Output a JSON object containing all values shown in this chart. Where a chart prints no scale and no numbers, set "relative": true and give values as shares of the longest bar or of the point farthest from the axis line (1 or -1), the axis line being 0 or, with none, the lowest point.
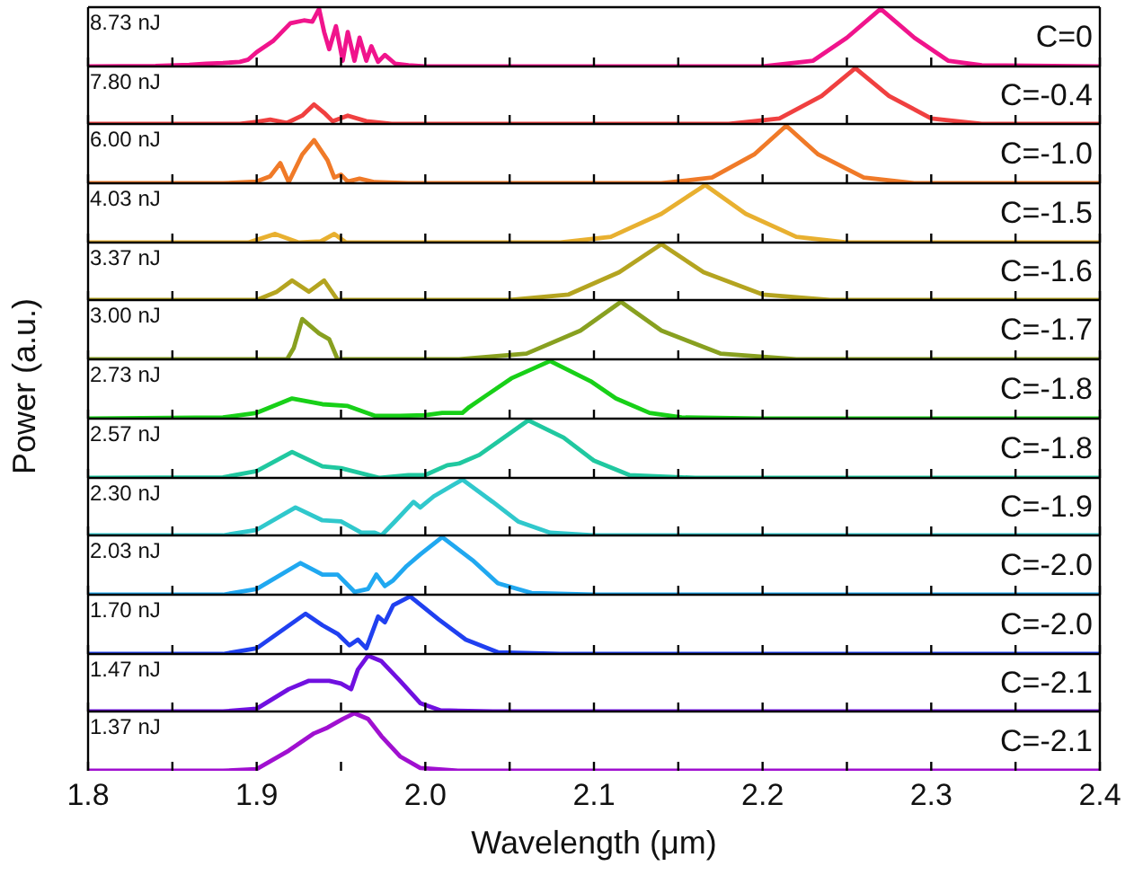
{
  "chart_data": [
    {
      "type": "line",
      "relative": true,
      "color": "#f0148c",
      "xlim": [
        1.8,
        2.4
      ],
      "xticks": [
        1.8,
        {
          "value": 1.85,
          "label": null
        },
        1.9,
        {
          "value": 1.95,
          "label": null
        },
        2.0,
        {
          "value": 2.05,
          "label": null
        },
        2.1,
        {
          "value": 2.15,
          "label": null
        },
        2.2,
        {
          "value": 2.25,
          "label": null
        },
        2.3,
        {
          "value": 2.35,
          "label": null
        },
        2.4
      ],
      "tick_labels": false,
      "annotations": [
        "8.73 nJ",
        "C=0"
      ],
      "x": [
        1.8,
        1.84,
        1.86,
        1.87,
        1.88,
        1.89,
        1.895,
        1.9,
        1.91,
        1.92,
        1.928,
        1.933,
        1.937,
        1.94,
        1.943,
        1.947,
        1.951,
        1.954,
        1.958,
        1.961,
        1.965,
        1.968,
        1.972,
        1.976,
        1.982,
        1.99,
        2.0,
        2.2,
        2.23,
        2.25,
        2.27,
        2.29,
        2.31,
        2.33,
        2.4
      ],
      "values": [
        0,
        0.01,
        0.03,
        0.05,
        0.06,
        0.08,
        0.12,
        0.25,
        0.45,
        0.75,
        0.8,
        0.78,
        1.0,
        0.6,
        0.3,
        0.7,
        0.1,
        0.6,
        0.1,
        0.5,
        0.1,
        0.35,
        0.08,
        0.2,
        0.05,
        0.02,
        0,
        0,
        0.1,
        0.5,
        1.0,
        0.5,
        0.1,
        0.02,
        0
      ]
    },
    {
      "type": "line",
      "relative": true,
      "color": "#f04040",
      "xlim": [
        1.8,
        2.4
      ],
      "xticks": [
        1.8,
        {
          "value": 1.85,
          "label": null
        },
        1.9,
        {
          "value": 1.95,
          "label": null
        },
        2.0,
        {
          "value": 2.05,
          "label": null
        },
        2.1,
        {
          "value": 2.15,
          "label": null
        },
        2.2,
        {
          "value": 2.25,
          "label": null
        },
        2.3,
        {
          "value": 2.35,
          "label": null
        },
        2.4
      ],
      "tick_labels": false,
      "annotations": [
        "7.80 nJ",
        "C=-0.4"
      ],
      "x": [
        1.8,
        1.89,
        1.9,
        1.908,
        1.918,
        1.927,
        1.934,
        1.94,
        1.945,
        1.954,
        1.965,
        1.98,
        2.18,
        2.21,
        2.235,
        2.255,
        2.275,
        2.3,
        2.33,
        2.4
      ],
      "values": [
        0,
        0,
        0.04,
        0.08,
        0.02,
        0.15,
        0.35,
        0.2,
        0.05,
        0.15,
        0.05,
        0,
        0,
        0.1,
        0.5,
        1.0,
        0.5,
        0.1,
        0,
        0
      ]
    },
    {
      "type": "line",
      "relative": true,
      "color": "#f07a28",
      "xlim": [
        1.8,
        2.4
      ],
      "xticks": [
        1.8,
        {
          "value": 1.85,
          "label": null
        },
        1.9,
        {
          "value": 1.95,
          "label": null
        },
        2.0,
        {
          "value": 2.05,
          "label": null
        },
        2.1,
        {
          "value": 2.15,
          "label": null
        },
        2.2,
        {
          "value": 2.25,
          "label": null
        },
        2.3,
        {
          "value": 2.35,
          "label": null
        },
        2.4
      ],
      "tick_labels": false,
      "annotations": [
        "6.00 nJ",
        "C=-1.0"
      ],
      "x": [
        1.8,
        1.88,
        1.9,
        1.908,
        1.914,
        1.919,
        1.927,
        1.934,
        1.942,
        1.946,
        1.95,
        1.954,
        1.961,
        1.97,
        1.99,
        2.14,
        2.17,
        2.195,
        2.214,
        2.233,
        2.26,
        2.29,
        2.4
      ],
      "values": [
        0,
        0,
        0.03,
        0.12,
        0.35,
        0.02,
        0.5,
        0.75,
        0.4,
        0.1,
        0.15,
        0.03,
        0.08,
        0.02,
        0,
        0,
        0.1,
        0.5,
        1.0,
        0.5,
        0.1,
        0,
        0
      ]
    },
    {
      "type": "line",
      "relative": true,
      "color": "#e8b030",
      "xlim": [
        1.8,
        2.4
      ],
      "xticks": [
        1.8,
        {
          "value": 1.85,
          "label": null
        },
        1.9,
        {
          "value": 1.95,
          "label": null
        },
        2.0,
        {
          "value": 2.05,
          "label": null
        },
        2.1,
        {
          "value": 2.15,
          "label": null
        },
        2.2,
        {
          "value": 2.25,
          "label": null
        },
        2.3,
        {
          "value": 2.35,
          "label": null
        },
        2.4
      ],
      "tick_labels": false,
      "annotations": [
        "4.03 nJ",
        "C=-1.5"
      ],
      "x": [
        1.8,
        1.895,
        1.911,
        1.925,
        1.938,
        1.946,
        1.953,
        2.08,
        2.11,
        2.14,
        2.166,
        2.19,
        2.22,
        2.25,
        2.4
      ],
      "values": [
        0,
        0,
        0.15,
        0,
        0.02,
        0.15,
        0,
        0,
        0.1,
        0.5,
        1.0,
        0.5,
        0.1,
        0,
        0
      ]
    },
    {
      "type": "line",
      "relative": true,
      "color": "#b4a420",
      "xlim": [
        1.8,
        2.4
      ],
      "xticks": [
        1.8,
        {
          "value": 1.85,
          "label": null
        },
        1.9,
        {
          "value": 1.95,
          "label": null
        },
        2.0,
        {
          "value": 2.05,
          "label": null
        },
        2.1,
        {
          "value": 2.15,
          "label": null
        },
        2.2,
        {
          "value": 2.25,
          "label": null
        },
        2.3,
        {
          "value": 2.35,
          "label": null
        },
        2.4
      ],
      "tick_labels": false,
      "annotations": [
        "3.37 nJ",
        "C=-1.6"
      ],
      "x": [
        1.8,
        1.9,
        1.912,
        1.921,
        1.931,
        1.94,
        1.948,
        2.05,
        2.085,
        2.115,
        2.14,
        2.165,
        2.2,
        2.24,
        2.4
      ],
      "values": [
        0,
        0,
        0.15,
        0.35,
        0.15,
        0.35,
        0,
        0,
        0.1,
        0.5,
        1.0,
        0.5,
        0.1,
        0,
        0
      ]
    },
    {
      "type": "line",
      "relative": true,
      "color": "#88a020",
      "xlim": [
        1.8,
        2.4
      ],
      "xticks": [
        1.8,
        {
          "value": 1.85,
          "label": null
        },
        1.9,
        {
          "value": 1.95,
          "label": null
        },
        2.0,
        {
          "value": 2.05,
          "label": null
        },
        2.1,
        {
          "value": 2.15,
          "label": null
        },
        2.2,
        {
          "value": 2.25,
          "label": null
        },
        2.3,
        {
          "value": 2.35,
          "label": null
        },
        2.4
      ],
      "tick_labels": false,
      "annotations": [
        "3.00 nJ",
        "C=-1.7"
      ],
      "x": [
        1.8,
        1.918,
        1.922,
        1.927,
        1.937,
        1.943,
        1.948,
        2.02,
        2.06,
        2.092,
        2.116,
        2.14,
        2.175,
        2.22,
        2.4
      ],
      "values": [
        0,
        0,
        0.2,
        0.7,
        0.45,
        0.35,
        0,
        0,
        0.1,
        0.5,
        1.0,
        0.5,
        0.1,
        0,
        0
      ]
    },
    {
      "type": "line",
      "relative": true,
      "color": "#18d018",
      "xlim": [
        1.8,
        2.4
      ],
      "xticks": [
        1.8,
        {
          "value": 1.85,
          "label": null
        },
        1.9,
        {
          "value": 1.95,
          "label": null
        },
        2.0,
        {
          "value": 2.05,
          "label": null
        },
        2.1,
        {
          "value": 2.15,
          "label": null
        },
        2.2,
        {
          "value": 2.25,
          "label": null
        },
        2.3,
        {
          "value": 2.35,
          "label": null
        },
        2.4
      ],
      "tick_labels": false,
      "ylabel": "Power (a.u.)",
      "annotations": [
        "2.73 nJ",
        "C=-1.8"
      ],
      "x": [
        1.8,
        1.88,
        1.9,
        1.921,
        1.939,
        1.954,
        1.97,
        1.985,
        2.0,
        2.01,
        2.022,
        2.026,
        2.036,
        2.051,
        2.074,
        2.098,
        2.113,
        2.133,
        2.152,
        2.2,
        2.4
      ],
      "values": [
        0,
        0.02,
        0.1,
        0.35,
        0.25,
        0.22,
        0.05,
        0.05,
        0.06,
        0.1,
        0.1,
        0.2,
        0.4,
        0.7,
        1.0,
        0.65,
        0.35,
        0.1,
        0.02,
        0,
        0
      ]
    },
    {
      "type": "line",
      "relative": true,
      "color": "#20c8a0",
      "xlim": [
        1.8,
        2.4
      ],
      "xticks": [
        1.8,
        {
          "value": 1.85,
          "label": null
        },
        1.9,
        {
          "value": 1.95,
          "label": null
        },
        2.0,
        {
          "value": 2.05,
          "label": null
        },
        2.1,
        {
          "value": 2.15,
          "label": null
        },
        2.2,
        {
          "value": 2.25,
          "label": null
        },
        2.3,
        {
          "value": 2.35,
          "label": null
        },
        2.4
      ],
      "tick_labels": false,
      "annotations": [
        "2.57 nJ",
        "C=-1.8"
      ],
      "x": [
        1.8,
        1.88,
        1.9,
        1.921,
        1.939,
        1.95,
        1.973,
        1.99,
        2.0,
        2.013,
        2.02,
        2.032,
        2.061,
        2.082,
        2.1,
        2.121,
        2.16,
        2.4
      ],
      "values": [
        0,
        0.01,
        0.12,
        0.45,
        0.2,
        0.17,
        0,
        0.05,
        0.05,
        0.22,
        0.25,
        0.4,
        1.0,
        0.7,
        0.3,
        0.05,
        0,
        0
      ]
    },
    {
      "type": "line",
      "relative": true,
      "color": "#30c8cc",
      "xlim": [
        1.8,
        2.4
      ],
      "xticks": [
        1.8,
        {
          "value": 1.85,
          "label": null
        },
        1.9,
        {
          "value": 1.95,
          "label": null
        },
        2.0,
        {
          "value": 2.05,
          "label": null
        },
        2.1,
        {
          "value": 2.15,
          "label": null
        },
        2.2,
        {
          "value": 2.25,
          "label": null
        },
        2.3,
        {
          "value": 2.35,
          "label": null
        },
        2.4
      ],
      "tick_labels": false,
      "annotations": [
        "2.30 nJ",
        "C=-1.9"
      ],
      "x": [
        1.8,
        1.88,
        1.9,
        1.923,
        1.939,
        1.95,
        1.962,
        1.97,
        1.974,
        1.982,
        1.993,
        1.997,
        2.005,
        2.022,
        2.04,
        2.055,
        2.074,
        2.1,
        2.4
      ],
      "values": [
        0,
        0,
        0.1,
        0.5,
        0.27,
        0.25,
        0.05,
        0.05,
        0,
        0.25,
        0.6,
        0.5,
        0.7,
        1.0,
        0.6,
        0.25,
        0.05,
        0,
        0
      ]
    },
    {
      "type": "line",
      "relative": true,
      "color": "#20a8f0",
      "xlim": [
        1.8,
        2.4
      ],
      "xticks": [
        1.8,
        {
          "value": 1.85,
          "label": null
        },
        1.9,
        {
          "value": 1.95,
          "label": null
        },
        2.0,
        {
          "value": 2.05,
          "label": null
        },
        2.1,
        {
          "value": 2.15,
          "label": null
        },
        2.2,
        {
          "value": 2.25,
          "label": null
        },
        2.3,
        {
          "value": 2.35,
          "label": null
        },
        2.4
      ],
      "tick_labels": false,
      "annotations": [
        "2.03 nJ",
        "C=-2.0"
      ],
      "x": [
        1.8,
        1.88,
        1.9,
        1.926,
        1.939,
        1.948,
        1.958,
        1.966,
        1.971,
        1.976,
        1.981,
        1.989,
        1.997,
        2.01,
        2.028,
        2.043,
        2.063,
        2.1,
        2.4
      ],
      "values": [
        0,
        0,
        0.1,
        0.55,
        0.35,
        0.35,
        0.05,
        0.1,
        0.35,
        0.15,
        0.25,
        0.5,
        0.7,
        1.0,
        0.6,
        0.2,
        0.03,
        0,
        0
      ]
    },
    {
      "type": "line",
      "relative": true,
      "color": "#2040f0",
      "xlim": [
        1.8,
        2.4
      ],
      "xticks": [
        1.8,
        {
          "value": 1.85,
          "label": null
        },
        1.9,
        {
          "value": 1.95,
          "label": null
        },
        2.0,
        {
          "value": 2.05,
          "label": null
        },
        2.1,
        {
          "value": 2.15,
          "label": null
        },
        2.2,
        {
          "value": 2.25,
          "label": null
        },
        2.3,
        {
          "value": 2.35,
          "label": null
        },
        2.4
      ],
      "tick_labels": false,
      "annotations": [
        "1.70 nJ",
        "C=-2.0"
      ],
      "x": [
        1.8,
        1.88,
        1.9,
        1.929,
        1.939,
        1.948,
        1.955,
        1.96,
        1.965,
        1.972,
        1.976,
        1.981,
        1.991,
        2.008,
        2.024,
        2.043,
        2.08,
        2.4
      ],
      "values": [
        0,
        0,
        0.1,
        0.7,
        0.5,
        0.35,
        0.15,
        0.25,
        0.1,
        0.65,
        0.55,
        0.85,
        1.0,
        0.6,
        0.25,
        0.03,
        0,
        0
      ]
    },
    {
      "type": "line",
      "relative": true,
      "color": "#7010e0",
      "xlim": [
        1.8,
        2.4
      ],
      "xticks": [
        1.8,
        {
          "value": 1.85,
          "label": null
        },
        1.9,
        {
          "value": 1.95,
          "label": null
        },
        2.0,
        {
          "value": 2.05,
          "label": null
        },
        2.1,
        {
          "value": 2.15,
          "label": null
        },
        2.2,
        {
          "value": 2.25,
          "label": null
        },
        2.3,
        {
          "value": 2.35,
          "label": null
        },
        2.4
      ],
      "tick_labels": false,
      "annotations": [
        "1.47 nJ",
        "C=-2.1"
      ],
      "x": [
        1.8,
        1.88,
        1.9,
        1.919,
        1.931,
        1.943,
        1.95,
        1.956,
        1.96,
        1.966,
        1.974,
        1.985,
        1.997,
        2.009,
        2.04,
        2.4
      ],
      "values": [
        0,
        0,
        0.05,
        0.4,
        0.55,
        0.55,
        0.5,
        0.4,
        0.75,
        1.0,
        0.9,
        0.55,
        0.15,
        0.02,
        0,
        0
      ]
    },
    {
      "type": "line",
      "relative": true,
      "color": "#a010d0",
      "xlim": [
        1.8,
        2.4
      ],
      "xticks": [
        1.8,
        {
          "value": 1.85,
          "label": null
        },
        1.9,
        {
          "value": 1.95,
          "label": null
        },
        {
          "value": 2.0,
          "label": "2.0"
        },
        {
          "value": 2.05,
          "label": null
        },
        2.1,
        {
          "value": 2.15,
          "label": null
        },
        2.2,
        {
          "value": 2.25,
          "label": null
        },
        2.3,
        {
          "value": 2.35,
          "label": null
        },
        2.4
      ],
      "tick_labels": "x",
      "xlabel": "Wavelength (μm)",
      "annotations": [
        "1.37 nJ",
        "C=-2.1"
      ],
      "x": [
        1.8,
        1.88,
        1.9,
        1.919,
        1.934,
        1.942,
        1.951,
        1.958,
        1.966,
        1.974,
        1.985,
        1.997,
        2.02,
        2.4
      ],
      "values": [
        0,
        0,
        0.03,
        0.35,
        0.65,
        0.75,
        0.9,
        1.0,
        0.9,
        0.6,
        0.25,
        0.05,
        0,
        0
      ]
    }
  ]
}
